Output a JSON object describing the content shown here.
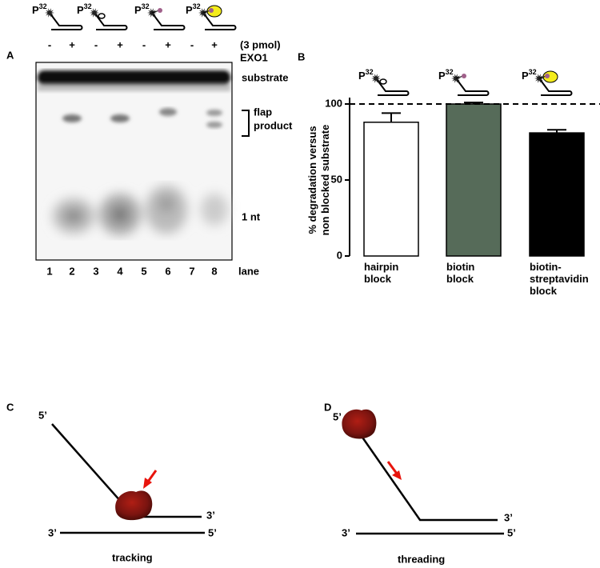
{
  "panel_labels": [
    "A",
    "B",
    "C",
    "D"
  ],
  "probe_label": {
    "base": "P",
    "sup": "32"
  },
  "gel": {
    "amount": "(3 pmol)",
    "enzyme": "EXO1",
    "lane_signs": [
      "-",
      "+",
      "-",
      "+",
      "-",
      "+",
      "-",
      "+"
    ],
    "lane_numbers": [
      "1",
      "2",
      "3",
      "4",
      "5",
      "6",
      "7",
      "8"
    ],
    "lane_label": "lane",
    "bands": {
      "substrate": "substrate",
      "flap": "flap",
      "product": "product",
      "nt": "1 nt"
    }
  },
  "chart_data": {
    "type": "bar",
    "ylabel": [
      "% degradation versus",
      "non blocked substrate"
    ],
    "categories": [
      "hairpin block",
      "biotin block",
      "biotin-streptavidin block"
    ],
    "values": [
      88,
      100,
      81
    ],
    "errors": [
      6,
      1,
      2
    ],
    "colors": [
      "#ffffff",
      "#566b59",
      "#000000"
    ],
    "ylim": [
      0,
      100
    ],
    "yticks": [
      0,
      50,
      100
    ],
    "reference_line": 100
  },
  "diagrams": [
    {
      "ends": [
        "5’",
        "3’",
        "3’",
        "5’"
      ],
      "caption": "tracking"
    },
    {
      "ends": [
        "5’",
        "3’",
        "3’",
        "5’"
      ],
      "caption": "threading"
    }
  ]
}
